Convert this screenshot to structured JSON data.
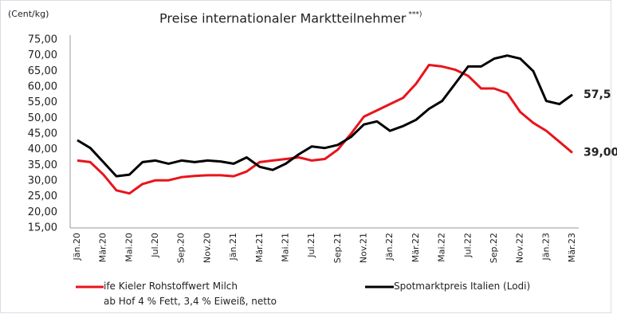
{
  "chart_data": {
    "type": "line",
    "title": "Preise internationaler Marktteilnehmer",
    "title_note": "***)",
    "y_label": "(Cent/kg)",
    "categories": [
      "Jän.20",
      null,
      "Mär.20",
      null,
      "Mai.20",
      null,
      "Jul.20",
      null,
      "Sep.20",
      null,
      "Nov.20",
      null,
      "Jän.21",
      null,
      "Mär.21",
      null,
      "Mai.21",
      null,
      "Jul.21",
      null,
      "Sep.21",
      null,
      "Nov.21",
      null,
      "Jän.22",
      null,
      "Mär.22",
      null,
      "Mai.22",
      null,
      "Jul.22",
      null,
      "Sep.22",
      null,
      "Nov.22",
      null,
      "Jän.23",
      null,
      "Mär.23"
    ],
    "series": [
      {
        "name": "ife Kieler Rohstoffwert Milch\nab Hof 4 % Fett, 3,4 % Eiweiß, netto",
        "color": "#e8141b",
        "values": [
          36.5,
          36,
          32,
          27,
          26,
          29,
          30.2,
          30.2,
          31.2,
          31.6,
          31.8,
          31.8,
          31.5,
          33,
          36,
          36.5,
          37,
          37.5,
          36.5,
          37,
          40,
          45,
          50.5,
          52.5,
          54.5,
          56.5,
          61,
          67,
          66.5,
          65.5,
          63.5,
          59.5,
          59.5,
          58,
          52,
          48.5,
          46,
          42.5,
          39
        ],
        "value_labels": [
          null,
          null,
          null,
          null,
          null,
          null,
          null,
          null,
          null,
          null,
          null,
          null,
          null,
          null,
          null,
          null,
          null,
          null,
          null,
          null,
          null,
          null,
          null,
          null,
          null,
          null,
          null,
          null,
          null,
          null,
          null,
          null,
          null,
          null,
          null,
          null,
          null,
          null,
          "39,00"
        ]
      },
      {
        "name": "Spotmarktpreis Italien (Lodi)",
        "color": "#000000",
        "values": [
          43,
          40.5,
          36,
          31.5,
          32,
          36,
          36.5,
          35.5,
          36.5,
          36,
          36.5,
          36.2,
          35.5,
          37.5,
          34.5,
          33.5,
          35.5,
          38.5,
          41,
          40.5,
          41.5,
          44,
          48,
          49,
          46,
          47.5,
          49.5,
          53,
          55.5,
          61,
          66.5,
          66.5,
          69,
          70,
          69,
          65,
          55.5,
          54.5,
          57.5
        ],
        "value_labels": [
          null,
          null,
          null,
          null,
          null,
          null,
          null,
          null,
          null,
          null,
          null,
          null,
          null,
          null,
          null,
          null,
          null,
          null,
          null,
          null,
          null,
          null,
          null,
          null,
          null,
          null,
          null,
          null,
          null,
          null,
          null,
          null,
          null,
          null,
          null,
          null,
          null,
          null,
          "57,5"
        ]
      }
    ],
    "ylim": [
      15,
      75
    ],
    "yticks": [
      {
        "value": 15,
        "label": "15,00"
      },
      {
        "value": 20,
        "label": "20,00"
      },
      {
        "value": 25,
        "label": "25,00"
      },
      {
        "value": 30,
        "label": "30,00"
      },
      {
        "value": 35,
        "label": "35,00"
      },
      {
        "value": 40,
        "label": "40,00"
      },
      {
        "value": 45,
        "label": "45,00"
      },
      {
        "value": 50,
        "label": "50,00"
      },
      {
        "value": 55,
        "label": "55,00"
      },
      {
        "value": 60,
        "label": "60,00"
      },
      {
        "value": 65,
        "label": "65,00"
      },
      {
        "value": 70,
        "label": "70,00"
      },
      {
        "value": 75,
        "label": "75,00"
      }
    ],
    "grid": false
  }
}
